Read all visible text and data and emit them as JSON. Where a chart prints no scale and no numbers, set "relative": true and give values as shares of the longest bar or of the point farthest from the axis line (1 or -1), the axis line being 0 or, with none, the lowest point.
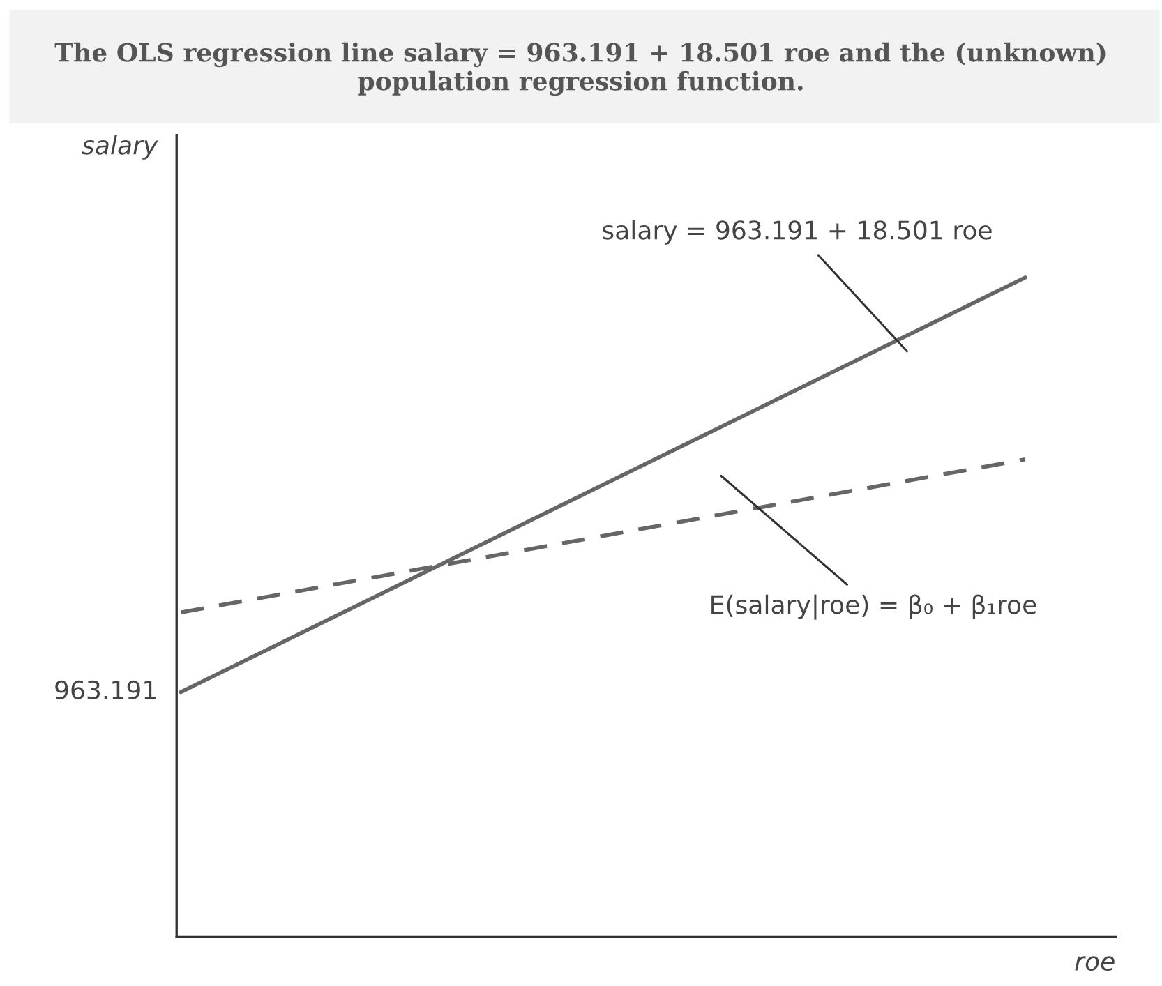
{
  "chart_data": {
    "type": "line",
    "title": "The OLS regression line salary = 963.191 + 18.501 roe and the (unknown) population regression function.",
    "xlabel": "roe",
    "ylabel": "salary",
    "categories": [
      null,
      null
    ],
    "relative": true,
    "series": [
      {
        "color": "#666666",
        "values": [
          0.371,
          1.0
        ],
        "line_style": "solid"
      },
      {
        "color": "#666666",
        "values": [
          0.492,
          0.724
        ],
        "line_style": "dashed"
      }
    ],
    "annotations": [
      "963.191",
      "salary = 963.191 + 18.501 roe",
      "E(salary|roe) = β₀ + β₁roe"
    ],
    "grid": false,
    "legend": false,
    "marker": "none"
  }
}
